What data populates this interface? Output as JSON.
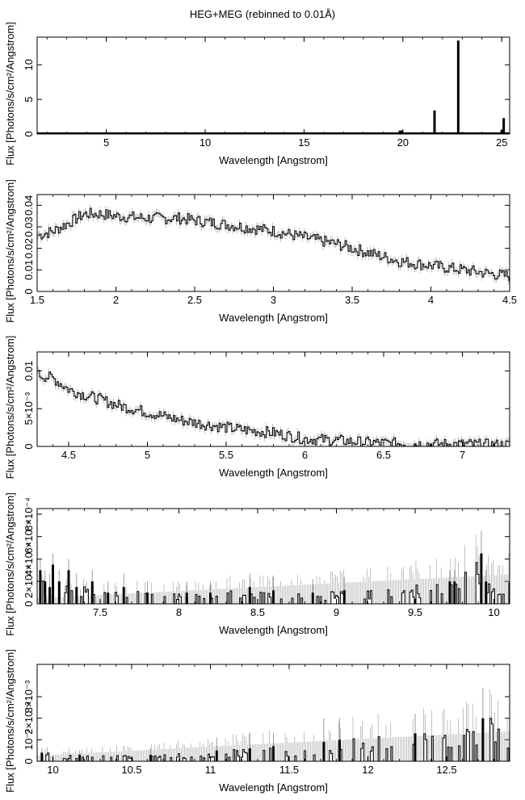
{
  "title": "HEG+MEG (rebinned to 0.01Å)",
  "chart_data": [
    {
      "type": "bar",
      "xlabel": "Wavelength [Angstrom]",
      "ylabel": "Flux [Photons/s/cm²/Angstrom]",
      "xlim": [
        1.5,
        25.4
      ],
      "ylim": [
        0,
        14
      ],
      "xticks": [
        5,
        10,
        15,
        20,
        25
      ],
      "xtick_labels": [
        "5",
        "10",
        "15",
        "20",
        "25"
      ],
      "yticks": [
        0,
        5,
        10
      ],
      "ytick_labels": [
        "0",
        "5",
        "10"
      ],
      "grid": false,
      "x": [
        19.85,
        19.95,
        21.6,
        22.8,
        25.0,
        25.1
      ],
      "values": [
        0.5,
        0.5,
        3.4,
        13.5,
        0.6,
        2.3
      ]
    },
    {
      "type": "line",
      "xlabel": "Wavelength [Angstrom]",
      "ylabel": "Flux [Photons/s/cm²/Angstrom]",
      "xlim": [
        1.5,
        4.5
      ],
      "ylim": [
        0,
        0.045
      ],
      "xticks": [
        1.5,
        2,
        2.5,
        3,
        3.5,
        4,
        4.5
      ],
      "xtick_labels": [
        "1.5",
        "2",
        "2.5",
        "3",
        "3.5",
        "4",
        "4.5"
      ],
      "yticks": [
        0,
        0.01,
        0.02,
        0.03,
        0.04
      ],
      "ytick_labels": [
        "0",
        "0.01",
        "0.02",
        "0.03",
        "0.04"
      ],
      "grid": false,
      "x": [
        1.5,
        1.6,
        1.7,
        1.8,
        1.9,
        2.0,
        2.2,
        2.4,
        2.6,
        2.8,
        3.0,
        3.2,
        3.4,
        3.6,
        3.8,
        4.0,
        4.2,
        4.4,
        4.5
      ],
      "values": [
        0.026,
        0.028,
        0.032,
        0.036,
        0.036,
        0.035,
        0.034,
        0.034,
        0.032,
        0.03,
        0.028,
        0.025,
        0.022,
        0.018,
        0.014,
        0.012,
        0.01,
        0.008,
        0.007
      ]
    },
    {
      "type": "line",
      "xlabel": "Wavelength [Angstrom]",
      "ylabel": "Flux [Photons/s/cm²/Angstrom]",
      "xlim": [
        4.3,
        7.3
      ],
      "ylim": [
        0,
        0.0125
      ],
      "xticks": [
        4.5,
        5,
        5.5,
        6,
        6.5,
        7
      ],
      "xtick_labels": [
        "4.5",
        "5",
        "5.5",
        "6",
        "6.5",
        "7"
      ],
      "yticks": [
        0,
        0.005,
        0.01
      ],
      "ytick_labels": [
        "0",
        "5×10⁻³",
        "0.01"
      ],
      "grid": false,
      "x": [
        4.3,
        4.4,
        4.5,
        4.6,
        4.7,
        4.8,
        5.0,
        5.2,
        5.4,
        5.6,
        5.8,
        6.0,
        6.2,
        6.4,
        6.6,
        6.8,
        7.0,
        7.2,
        7.3
      ],
      "values": [
        0.0095,
        0.009,
        0.0075,
        0.0068,
        0.0062,
        0.0055,
        0.0045,
        0.0035,
        0.0028,
        0.0022,
        0.0018,
        0.001,
        0.0008,
        0.0005,
        0.0004,
        0.0003,
        0.0003,
        0.0002,
        0.0002
      ]
    },
    {
      "type": "bar",
      "xlabel": "Wavelength [Angstrom]",
      "ylabel": "Flux [Photons/s/cm²/Angstrom]",
      "xlim": [
        7.1,
        10.1
      ],
      "ylim": [
        0,
        0.00085
      ],
      "xticks": [
        7.5,
        8,
        8.5,
        9,
        9.5,
        10
      ],
      "xtick_labels": [
        "7.5",
        "8",
        "8.5",
        "9",
        "9.5",
        "10"
      ],
      "yticks": [
        0,
        0.0002,
        0.0004,
        0.0006,
        0.0008
      ],
      "ytick_labels": [
        "0",
        "2×10⁻⁴",
        "4×10⁻⁴",
        "6×10⁻⁴",
        "8×10⁻⁴"
      ],
      "grid": false,
      "x": [
        7.12,
        7.15,
        7.18,
        7.2,
        7.24,
        7.3,
        7.35,
        7.45,
        7.55,
        7.65,
        7.8,
        8.05,
        8.2,
        8.45,
        8.6,
        8.85,
        9.05,
        9.72,
        9.75,
        9.92,
        9.95
      ],
      "values": [
        0.0003,
        0.0002,
        0.00015,
        0.00035,
        0.0002,
        0.0003,
        0.00015,
        0.0002,
        0.0001,
        0.00015,
        0.0001,
        0.0001,
        0.0001,
        0.00015,
        0.00012,
        0.0001,
        0.00012,
        0.0002,
        0.0002,
        0.00045,
        0.0002
      ],
      "upper_error": [
        0.0001,
        0.0001,
        0.00012,
        0.0001,
        0.0001,
        0.0001,
        0.00012,
        0.0001,
        0.0001,
        0.00012,
        0.0001,
        0.0001,
        0.0001,
        0.00012,
        0.00012,
        0.00012,
        0.00012,
        0.0001,
        0.0001,
        0.0002,
        0.0001
      ]
    },
    {
      "type": "bar",
      "xlabel": "Wavelength [Angstrom]",
      "ylabel": "Flux [Photons/s/cm²/Angstrom]",
      "xlim": [
        9.9,
        12.9
      ],
      "ylim": [
        0,
        0.0045
      ],
      "xticks": [
        10,
        10.5,
        11,
        11.5,
        12,
        12.5
      ],
      "xtick_labels": [
        "10",
        "10.5",
        "11",
        "11.5",
        "12",
        "12.5"
      ],
      "yticks": [
        0,
        0.001,
        0.002,
        0.003
      ],
      "ytick_labels": [
        "0",
        "10⁻³",
        "2×10⁻³",
        "3×10⁻³"
      ],
      "grid": false,
      "x": [
        9.93,
        10.17,
        10.62,
        11.04,
        11.25,
        11.4,
        11.72,
        11.82,
        12.3,
        12.73
      ],
      "values": [
        0.0004,
        0.0003,
        0.0003,
        0.0005,
        0.0006,
        0.0007,
        0.0009,
        0.001,
        0.0013,
        0.002
      ],
      "upper_error": [
        0.0002,
        0.0002,
        0.0003,
        0.0006,
        0.0007,
        0.0006,
        0.0011,
        0.001,
        0.0009,
        0.0014
      ]
    }
  ]
}
